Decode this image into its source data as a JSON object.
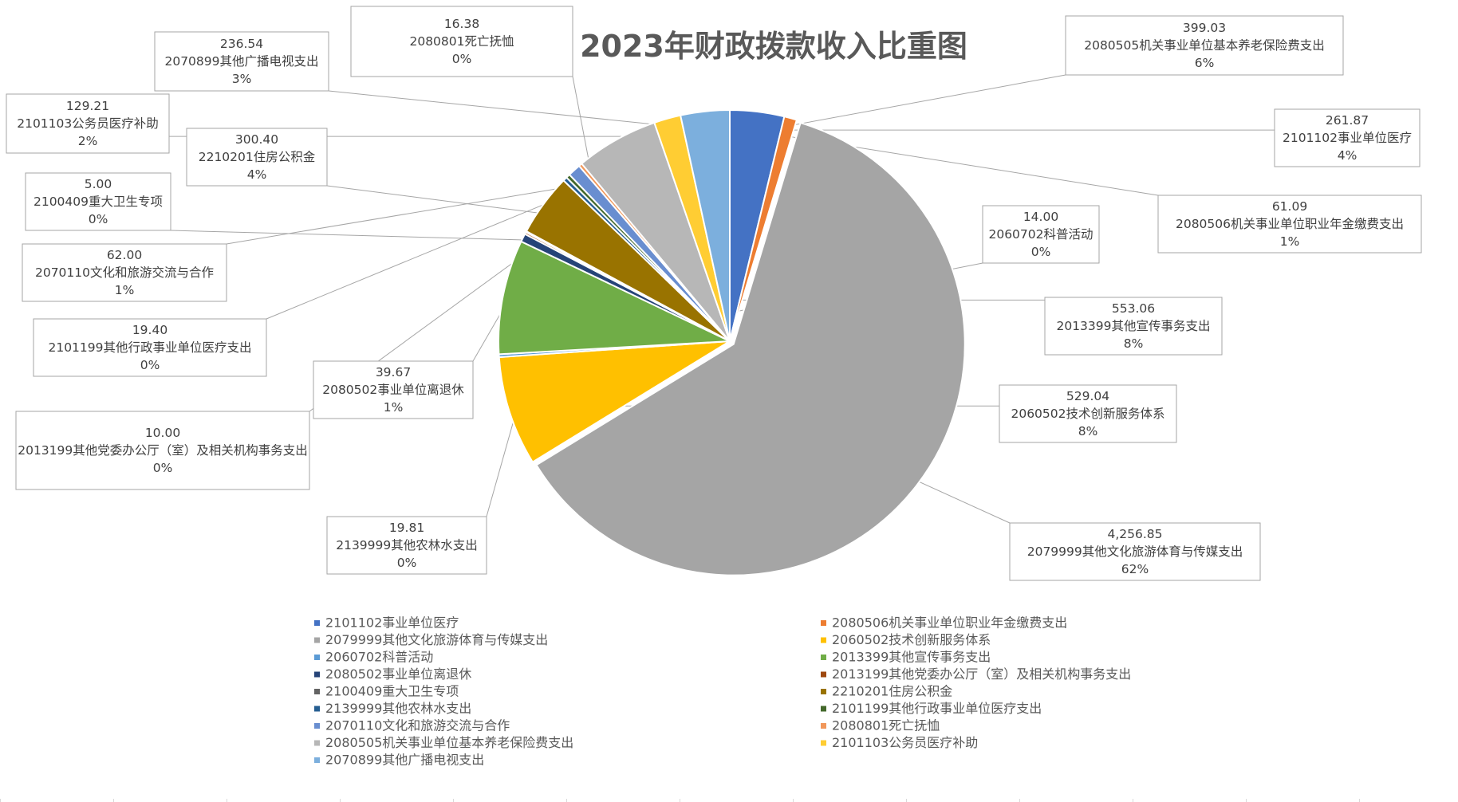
{
  "chart_data": {
    "type": "pie",
    "title": "2023年财政拨款收入比重图",
    "legend_position": "bottom",
    "slices": [
      {
        "name": "2101102事业单位医疗",
        "value": 261.87,
        "value_label": "261.87",
        "percent_label": "4%",
        "color": "#4472C4"
      },
      {
        "name": "2080506机关事业单位职业年金缴费支出",
        "value": 61.09,
        "value_label": "61.09",
        "percent_label": "1%",
        "color": "#ED7D31"
      },
      {
        "name": "2079999其他文化旅游体育与传媒支出",
        "value": 4256.85,
        "value_label": "4,256.85",
        "percent_label": "62%",
        "color": "#A5A5A5"
      },
      {
        "name": "2060502技术创新服务体系",
        "value": 529.04,
        "value_label": "529.04",
        "percent_label": "8%",
        "color": "#FFC000"
      },
      {
        "name": "2060702科普活动",
        "value": 14.0,
        "value_label": "14.00",
        "percent_label": "0%",
        "color": "#5B9BD5"
      },
      {
        "name": "2013399其他宣传事务支出",
        "value": 553.06,
        "value_label": "553.06",
        "percent_label": "8%",
        "color": "#70AD47"
      },
      {
        "name": "2080502事业单位离退休",
        "value": 39.67,
        "value_label": "39.67",
        "percent_label": "1%",
        "color": "#264478"
      },
      {
        "name": "2013199其他党委办公厅（室）及相关机构事务支出",
        "value": 10.0,
        "value_label": "10.00",
        "percent_label": "0%",
        "color": "#9E480E"
      },
      {
        "name": "2100409重大卫生专项",
        "value": 5.0,
        "value_label": "5.00",
        "percent_label": "0%",
        "color": "#636363"
      },
      {
        "name": "2210201住房公积金",
        "value": 300.4,
        "value_label": "300.40",
        "percent_label": "4%",
        "color": "#997300"
      },
      {
        "name": "2139999其他农林水支出",
        "value": 19.81,
        "value_label": "19.81",
        "percent_label": "0%",
        "color": "#255E91"
      },
      {
        "name": "2101199其他行政事业单位医疗支出",
        "value": 19.4,
        "value_label": "19.40",
        "percent_label": "0%",
        "color": "#43682B"
      },
      {
        "name": "2070110文化和旅游交流与合作",
        "value": 62.0,
        "value_label": "62.00",
        "percent_label": "1%",
        "color": "#698ED0"
      },
      {
        "name": "2080801死亡抚恤",
        "value": 16.38,
        "value_label": "16.38",
        "percent_label": "0%",
        "color": "#F1975A"
      },
      {
        "name": "2080505机关事业单位基本养老保险费支出",
        "value": 399.03,
        "value_label": "399.03",
        "percent_label": "6%",
        "color": "#B7B7B7"
      },
      {
        "name": "2101103公务员医疗补助",
        "value": 129.21,
        "value_label": "129.21",
        "percent_label": "2%",
        "color": "#FFCD33"
      },
      {
        "name": "2070899其他广播电视支出",
        "value": 236.54,
        "value_label": "236.54",
        "percent_label": "3%",
        "color": "#7CAFDD"
      }
    ]
  }
}
